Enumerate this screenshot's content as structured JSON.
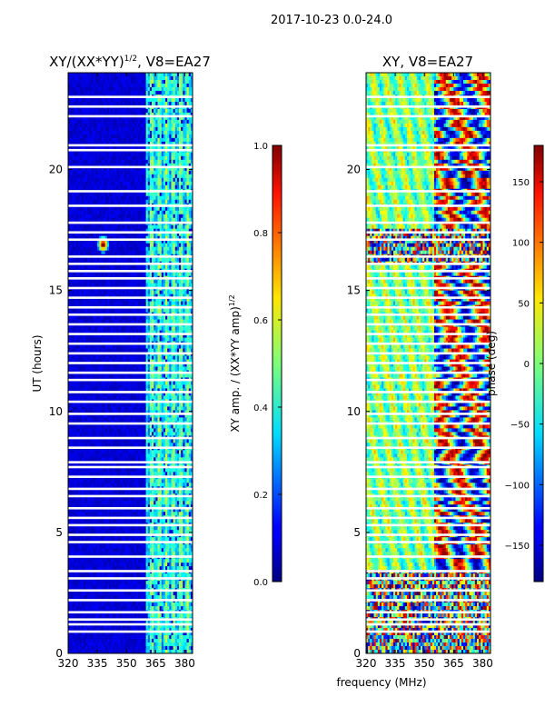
{
  "figure": {
    "suptitle": "2017-10-23 0.0-24.0",
    "shared_xlabel": "frequency (MHz)"
  },
  "chart_data": [
    {
      "type": "heatmap",
      "title_prefix": "XY/(XX*YY)",
      "title_superscript": "1/2",
      "title_suffix": ", V8=EA27",
      "xlabel": "",
      "ylabel": "UT (hours)",
      "xlim": [
        320,
        384
      ],
      "ylim": [
        0,
        24
      ],
      "xticks": [
        320,
        335,
        350,
        365,
        380
      ],
      "yticks": [
        0,
        5,
        10,
        15,
        20
      ],
      "colormap": "jet",
      "colorbar": {
        "label_prefix": "XY amp. / (XX*YY amp)",
        "label_superscript": "1/2",
        "range": [
          0.0,
          1.0
        ],
        "ticks": [
          0.0,
          0.2,
          0.4,
          0.6,
          0.8,
          1.0
        ],
        "tick_labels": [
          "0.0",
          "0.2",
          "0.4",
          "0.6",
          "0.8",
          "1.0"
        ]
      },
      "description_values": {
        "background_level": 0.05,
        "active_band_MHz": [
          360,
          384
        ],
        "active_band_level_range": [
          0.2,
          0.6
        ],
        "hotspot": {
          "freq_MHz": 338,
          "ut_hours": 16.9,
          "level": 0.8
        }
      }
    },
    {
      "type": "heatmap",
      "title": "XY, V8=EA27",
      "xlabel": "",
      "ylabel": "",
      "xlim": [
        320,
        384
      ],
      "ylim": [
        0,
        24
      ],
      "xticks": [
        320,
        335,
        350,
        365,
        380
      ],
      "yticks": [
        0,
        5,
        10,
        15,
        20
      ],
      "colormap": "jet",
      "colorbar": {
        "label": "phase (deg)",
        "range": [
          -180,
          180
        ],
        "ticks": [
          -150,
          -100,
          -50,
          0,
          50,
          100,
          150
        ],
        "tick_labels": [
          "−150",
          "−100",
          "−50",
          "0",
          "50",
          "100",
          "150"
        ]
      }
    }
  ],
  "flagged_ut_gaps_hours": [
    0.9,
    1.2,
    1.4,
    1.7,
    2.2,
    2.6,
    3.1,
    3.4,
    4.0,
    4.6,
    4.9,
    5.3,
    5.6,
    6.0,
    6.5,
    6.8,
    7.3,
    7.7,
    7.9,
    8.5,
    8.9,
    9.5,
    9.9,
    10.4,
    10.8,
    11.3,
    11.6,
    12.0,
    12.4,
    12.8,
    13.2,
    13.6,
    14.0,
    14.3,
    14.7,
    15.1,
    15.5,
    15.8,
    16.1,
    16.4,
    17.1,
    17.4,
    17.8,
    18.5,
    19.1,
    20.1,
    20.8,
    21.0,
    22.2,
    22.6,
    23.0
  ]
}
